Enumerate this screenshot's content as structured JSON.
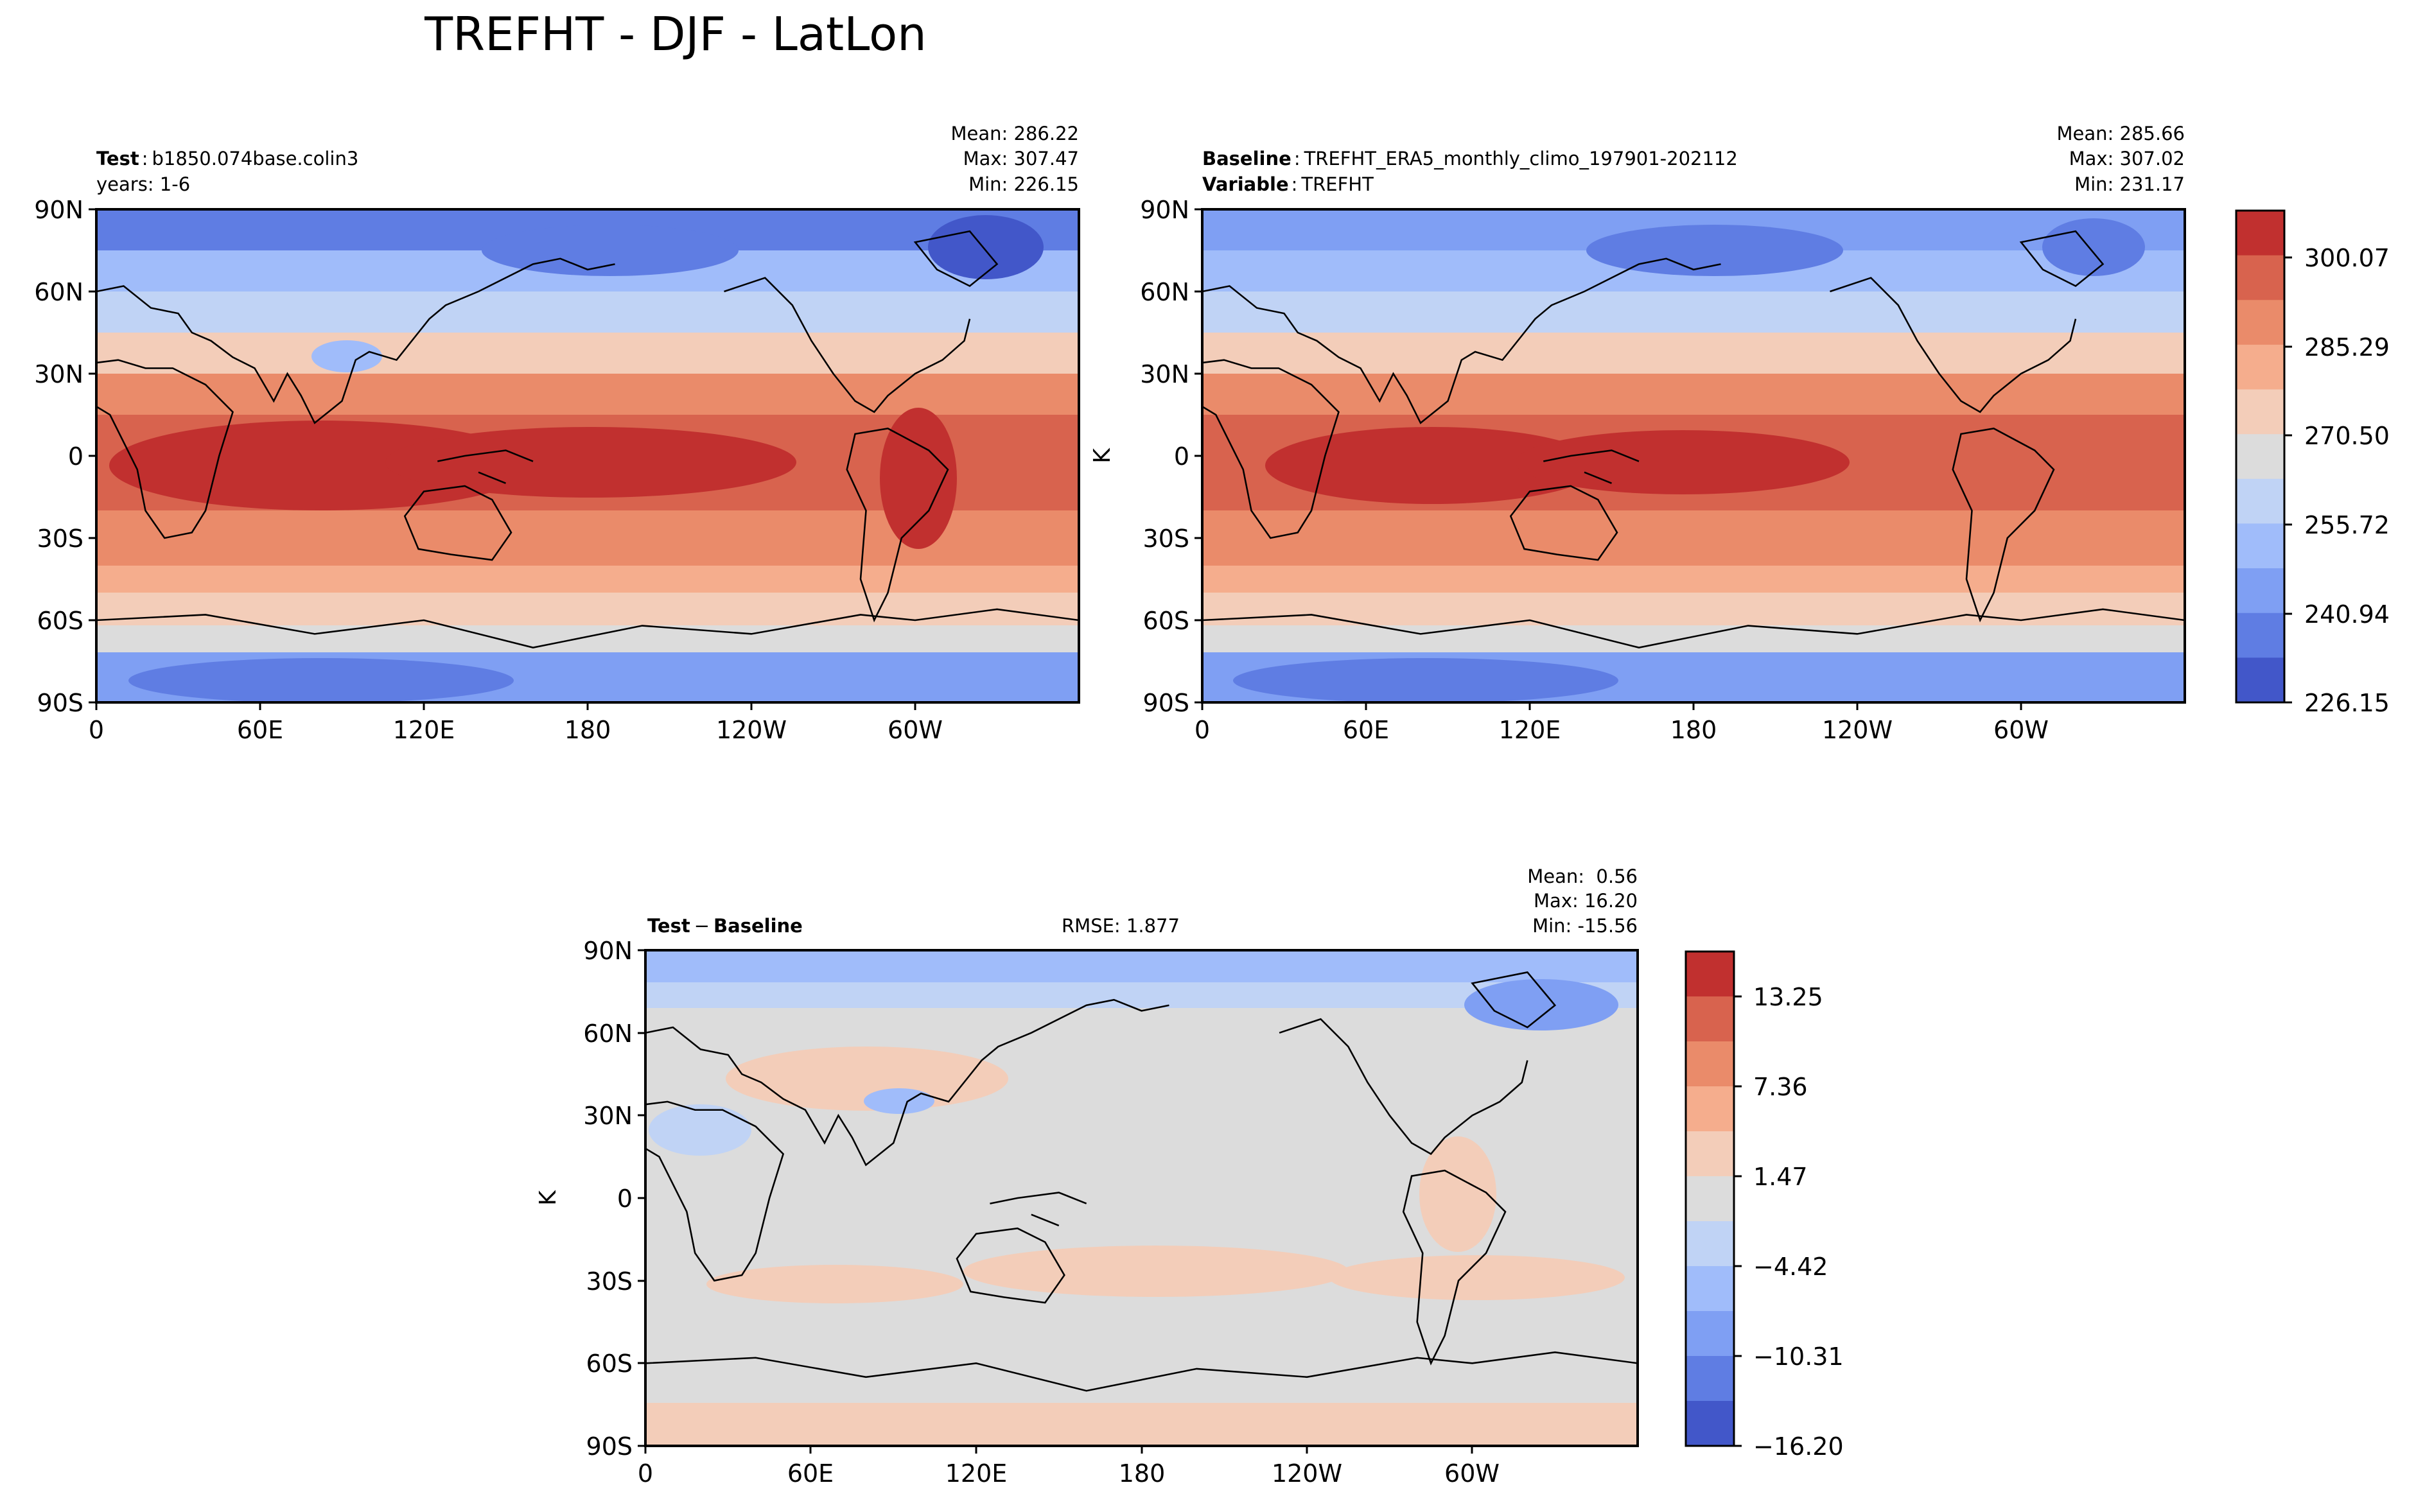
{
  "figure_title": "TREFHT - DJF - LatLon",
  "palette": {
    "levels_11": [
      "#4257c9",
      "#5f7de3",
      "#7f9ff3",
      "#a0bcfa",
      "#c0d3f5",
      "#dcdcdc",
      "#f3cdb9",
      "#f5ad8d",
      "#ea8b6a",
      "#d8634e",
      "#c1302f"
    ],
    "coast": "#000000",
    "frame": "#000000"
  },
  "axes_ticks": {
    "lat": [
      "90N",
      "60N",
      "30N",
      "0",
      "30S",
      "60S",
      "90S"
    ],
    "lon": [
      "0",
      "60E",
      "120E",
      "180",
      "120W",
      "60W"
    ]
  },
  "chart_data": [
    {
      "type": "heatmap",
      "panel": "test",
      "label_bold": "Test",
      "label_text": "b1850.074base.colin3",
      "label2_text": "years: 1-6",
      "stats": {
        "mean": "Mean: 286.22",
        "max": "Max: 307.47",
        "min": "Min: 226.15"
      },
      "units": "K",
      "xlim": [
        0,
        360
      ],
      "ylim": [
        -90,
        90
      ],
      "zone_levels_by_lat": [
        {
          "lat": [
            75,
            90
          ],
          "level": 1
        },
        {
          "lat": [
            60,
            75
          ],
          "level": 3
        },
        {
          "lat": [
            45,
            60
          ],
          "level": 5
        },
        {
          "lat": [
            30,
            45
          ],
          "level": 6
        },
        {
          "lat": [
            15,
            30
          ],
          "level": 8
        },
        {
          "lat": [
            -20,
            15
          ],
          "level": 9
        },
        {
          "lat": [
            -40,
            -20
          ],
          "level": 8
        },
        {
          "lat": [
            -50,
            -40
          ],
          "level": 7
        },
        {
          "lat": [
            -62,
            -50
          ],
          "level": 6
        },
        {
          "lat": [
            -72,
            -62
          ],
          "level": 5
        },
        {
          "lat": [
            -80,
            -72
          ],
          "level": 2
        },
        {
          "lat": [
            -90,
            -80
          ],
          "level": 1
        }
      ]
    },
    {
      "type": "heatmap",
      "panel": "baseline",
      "label_bold": "Baseline",
      "label_text": "TREFHT_ERA5_monthly_climo_197901-202112",
      "label2_bold": "Variable",
      "label2_text": "TREFHT",
      "stats": {
        "mean": "Mean: 285.66",
        "max": "Max: 307.02",
        "min": "Min: 231.17"
      },
      "units": "K",
      "xlim": [
        0,
        360
      ],
      "ylim": [
        -90,
        90
      ],
      "colorbar": {
        "levels": [
          226.15,
          233.54,
          240.94,
          248.33,
          255.72,
          263.11,
          270.5,
          277.9,
          285.29,
          292.68,
          300.07,
          307.47
        ],
        "tick_labels": [
          "300.07",
          "285.29",
          "270.50",
          "255.72",
          "240.94",
          "226.15"
        ]
      }
    },
    {
      "type": "heatmap",
      "panel": "difference",
      "label_bold": "Test",
      "label_op": "−",
      "label_bold2": "Baseline",
      "rmse": "RMSE: 1.877",
      "stats": {
        "mean": "Mean:  0.56",
        "max": "Max: 16.20",
        "min": "Min: -15.56"
      },
      "units": "K",
      "xlim": [
        0,
        360
      ],
      "ylim": [
        -90,
        90
      ],
      "colorbar": {
        "levels": [
          -16.2,
          -13.25,
          -10.31,
          -7.36,
          -4.42,
          -1.47,
          1.47,
          4.42,
          7.36,
          10.31,
          13.25,
          16.2
        ],
        "tick_labels": [
          "13.25",
          "7.36",
          "1.47",
          "−4.42",
          "−10.31",
          "−16.20"
        ]
      }
    }
  ]
}
